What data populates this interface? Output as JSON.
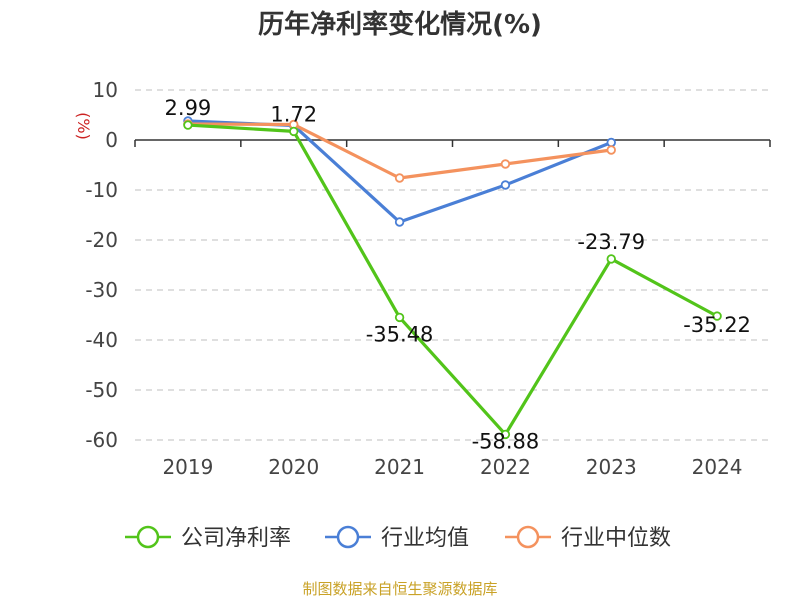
{
  "chart_data": {
    "type": "line",
    "title": "历年净利率变化情况(%)",
    "ylabel": "(%)",
    "xlabel": "",
    "ylim": [
      -60,
      10
    ],
    "yticks": [
      10,
      0,
      -10,
      -20,
      -30,
      -40,
      -50,
      -60
    ],
    "categories": [
      "2019",
      "2020",
      "2021",
      "2022",
      "2023",
      "2024"
    ],
    "grid": true,
    "legend_position": "bottom",
    "series": [
      {
        "name": "公司净利率",
        "color": "#52c41a",
        "values": [
          2.99,
          1.72,
          -35.48,
          -58.88,
          -23.79,
          -35.22
        ],
        "labels": [
          "2.99",
          "1.72",
          "-35.48",
          "-58.88",
          "-23.79",
          "-35.22"
        ]
      },
      {
        "name": "行业均值",
        "color": "#4a7fd6",
        "values": [
          3.8,
          2.9,
          -16.4,
          -9.0,
          -0.5,
          null
        ]
      },
      {
        "name": "行业中位数",
        "color": "#f4925e",
        "values": [
          3.2,
          3.1,
          -7.6,
          -4.8,
          -2.0,
          null
        ]
      }
    ]
  },
  "source": {
    "text": "制图数据来自恒生聚源数据库",
    "color": "#c9a227"
  }
}
